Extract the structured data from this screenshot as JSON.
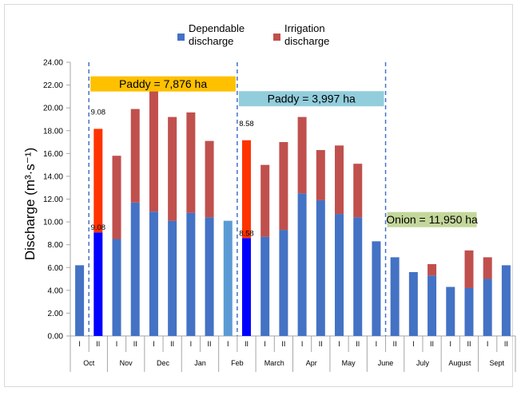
{
  "chart_data": {
    "type": "bar",
    "stacked": true,
    "ylabel": "Discharge (m³·s⁻¹)",
    "ylim": [
      0,
      24
    ],
    "yticks": [
      "0.00",
      "2.00",
      "4.00",
      "6.00",
      "8.00",
      "10.00",
      "12.00",
      "14.00",
      "16.00",
      "18.00",
      "20.00",
      "22.00",
      "24.00"
    ],
    "legend": {
      "placement": "top-center",
      "items": [
        {
          "label_line1": "Dependable",
          "label_line2": "discharge",
          "color": "#4472C4"
        },
        {
          "label_line1": "Irrigation",
          "label_line2": "discharge",
          "color": "#C0504D"
        }
      ]
    },
    "months": [
      "Oct",
      "Nov",
      "Dec",
      "Jan",
      "Feb",
      "March",
      "Apr",
      "May",
      "June",
      "July",
      "August",
      "Sept"
    ],
    "half_labels": [
      "I",
      "II"
    ],
    "bars": [
      {
        "month": "Oct",
        "half": "I",
        "dependable": 6.2,
        "irrigation": 0,
        "dep_color": "#4472C4",
        "irr_color": "#C0504D"
      },
      {
        "month": "Oct",
        "half": "II",
        "dependable": 9.08,
        "irrigation": 9.08,
        "dep_color": "#0000FF",
        "irr_color": "#FF3300",
        "label_mid": "9.08",
        "label_top": "9.08"
      },
      {
        "month": "Nov",
        "half": "I",
        "dependable": 8.5,
        "irrigation": 7.3,
        "dep_color": "#4472C4",
        "irr_color": "#C0504D"
      },
      {
        "month": "Nov",
        "half": "II",
        "dependable": 11.7,
        "irrigation": 8.2,
        "dep_color": "#4472C4",
        "irr_color": "#C0504D"
      },
      {
        "month": "Dec",
        "half": "I",
        "dependable": 10.9,
        "irrigation": 10.8,
        "dep_color": "#4472C4",
        "irr_color": "#C0504D"
      },
      {
        "month": "Dec",
        "half": "II",
        "dependable": 10.1,
        "irrigation": 9.1,
        "dep_color": "#4472C4",
        "irr_color": "#C0504D"
      },
      {
        "month": "Jan",
        "half": "I",
        "dependable": 10.8,
        "irrigation": 8.8,
        "dep_color": "#4472C4",
        "irr_color": "#C0504D"
      },
      {
        "month": "Jan",
        "half": "II",
        "dependable": 10.4,
        "irrigation": 6.7,
        "dep_color": "#4472C4",
        "irr_color": "#C0504D"
      },
      {
        "month": "Feb",
        "half": "I",
        "dependable": 10.1,
        "irrigation": 0,
        "dep_color": "#5B9BD5",
        "irr_color": "#C0504D"
      },
      {
        "month": "Feb",
        "half": "II",
        "dependable": 8.58,
        "irrigation": 8.58,
        "dep_color": "#0000FF",
        "irr_color": "#FF3300",
        "label_mid": "8.58",
        "label_top": "8.58"
      },
      {
        "month": "March",
        "half": "I",
        "dependable": 8.7,
        "irrigation": 6.3,
        "dep_color": "#4472C4",
        "irr_color": "#C0504D"
      },
      {
        "month": "March",
        "half": "II",
        "dependable": 9.3,
        "irrigation": 7.7,
        "dep_color": "#4472C4",
        "irr_color": "#C0504D"
      },
      {
        "month": "Apr",
        "half": "I",
        "dependable": 12.5,
        "irrigation": 6.7,
        "dep_color": "#4472C4",
        "irr_color": "#C0504D"
      },
      {
        "month": "Apr",
        "half": "II",
        "dependable": 11.9,
        "irrigation": 4.4,
        "dep_color": "#4472C4",
        "irr_color": "#C0504D"
      },
      {
        "month": "May",
        "half": "I",
        "dependable": 10.7,
        "irrigation": 6.0,
        "dep_color": "#4472C4",
        "irr_color": "#C0504D"
      },
      {
        "month": "May",
        "half": "II",
        "dependable": 10.4,
        "irrigation": 4.7,
        "dep_color": "#4472C4",
        "irr_color": "#C0504D"
      },
      {
        "month": "June",
        "half": "I",
        "dependable": 8.3,
        "irrigation": 0,
        "dep_color": "#4472C4",
        "irr_color": "#C0504D"
      },
      {
        "month": "June",
        "half": "II",
        "dependable": 6.9,
        "irrigation": 0,
        "dep_color": "#4472C4",
        "irr_color": "#C0504D"
      },
      {
        "month": "July",
        "half": "I",
        "dependable": 5.6,
        "irrigation": 0,
        "dep_color": "#4472C4",
        "irr_color": "#C0504D"
      },
      {
        "month": "July",
        "half": "II",
        "dependable": 5.3,
        "irrigation": 1.0,
        "dep_color": "#4472C4",
        "irr_color": "#C0504D"
      },
      {
        "month": "August",
        "half": "I",
        "dependable": 4.3,
        "irrigation": 0,
        "dep_color": "#4472C4",
        "irr_color": "#C0504D"
      },
      {
        "month": "August",
        "half": "II",
        "dependable": 4.2,
        "irrigation": 3.3,
        "dep_color": "#4472C4",
        "irr_color": "#C0504D"
      },
      {
        "month": "Sept",
        "half": "I",
        "dependable": 5.0,
        "irrigation": 1.9,
        "dep_color": "#4472C4",
        "irr_color": "#C0504D"
      },
      {
        "month": "Sept",
        "half": "II",
        "dependable": 6.2,
        "irrigation": 0,
        "dep_color": "#4472C4",
        "irr_color": "#C0504D"
      }
    ],
    "season_dividers_after_bar": [
      0,
      8,
      16
    ],
    "annotations": [
      {
        "text": "Paddy = 7,876 ha",
        "fill": "#FFC000",
        "start_bar": 1,
        "end_bar": 8,
        "y": 22.1
      },
      {
        "text": "Paddy = 3,997 ha",
        "fill": "#92CDDC",
        "start_bar": 9,
        "end_bar": 16,
        "y": 20.8
      },
      {
        "text": "Onion = 11,950 ha",
        "fill": "#C4D79B",
        "start_bar": 17,
        "end_bar": 21,
        "y": 10.2
      }
    ],
    "grid": false
  }
}
